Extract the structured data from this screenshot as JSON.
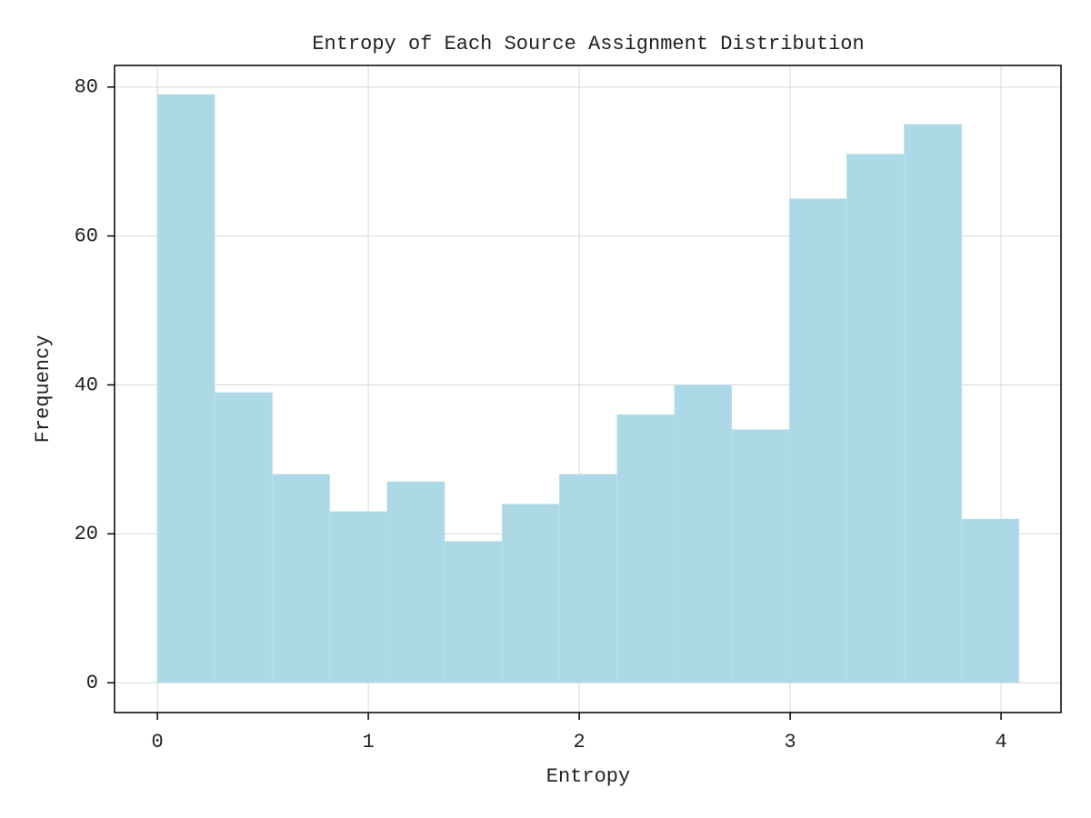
{
  "chart_data": {
    "type": "histogram",
    "title": "Entropy of Each Source Assignment Distribution",
    "x_label": "Entropy",
    "y_label": "Frequency",
    "bins": [
      0,
      0.272,
      0.545,
      0.817,
      1.089,
      1.362,
      1.634,
      1.906,
      2.179,
      2.451,
      2.723,
      2.996,
      3.268,
      3.54,
      3.813,
      4.085
    ],
    "values": [
      79,
      39,
      28,
      23,
      27,
      19,
      24,
      28,
      36,
      40,
      34,
      65,
      71,
      75,
      22
    ],
    "color": "#add8e6",
    "xlim": [
      -0.203,
      4.284
    ],
    "ylim": [
      -4,
      82.9
    ],
    "xticks": [
      0,
      1,
      2,
      3,
      4
    ],
    "yticks": [
      0,
      20,
      40,
      60,
      80
    ],
    "grid": true
  }
}
